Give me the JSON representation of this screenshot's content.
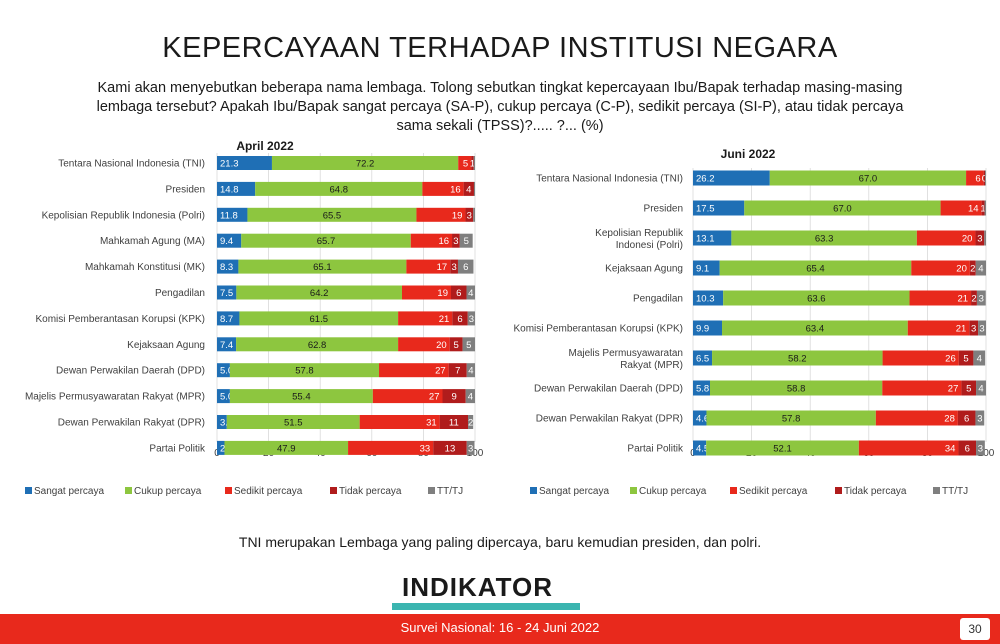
{
  "title": "KEPERCAYAAN TERHADAP INSTITUSI NEGARA",
  "subtitle": "Kami akan menyebutkan beberapa nama lembaga. Tolong sebutkan tingkat kepercayaan Ibu/Bapak terhadap masing-masing lembaga tersebut? Apakah Ibu/Bapak sangat percaya (SA-P), cukup percaya (C-P), sedikit percaya (SI-P), atau tidak percaya sama sekali (TPSS)?..... ?... (%)",
  "conclusion": "TNI merupakan Lembaga yang paling dipercaya, baru kemudian presiden, dan polri.",
  "logo": "INDIKATOR",
  "footer": {
    "text": "Survei Nasional: 16 - 24 Juni 2022",
    "page": "30"
  },
  "colors": [
    "#1f6fb5",
    "#8dc63f",
    "#e8291c",
    "#b01c1c",
    "#7f7f7f"
  ],
  "chart_data": [
    {
      "type": "bar",
      "stacked": true,
      "orientation": "horizontal",
      "title": "April 2022",
      "xlim": [
        0,
        100
      ],
      "xticks": [
        0,
        20,
        40,
        60,
        80,
        100
      ],
      "legend_position": "bottom",
      "categories": [
        "Tentara Nasional Indonesia (TNI)",
        "Presiden",
        "Kepolisian Republik Indonesia (Polri)",
        "Mahkamah Agung (MA)",
        "Mahkamah Konstitusi (MK)",
        "Pengadilan",
        "Komisi Pemberantasan Korupsi (KPK)",
        "Kejaksaan Agung",
        "Dewan Perwakilan Daerah (DPD)",
        "Majelis Permusyawaratan Rakyat (MPR)",
        "Dewan Perwakilan Rakyat (DPR)",
        "Partai Politik"
      ],
      "series": [
        {
          "name": "Sangat percaya",
          "values": [
            21.3,
            14.8,
            11.8,
            9.4,
            8.3,
            7.5,
            8.7,
            7.4,
            5.0,
            5.0,
            3.8,
            2.9
          ]
        },
        {
          "name": "Cukup percaya",
          "values": [
            72.2,
            64.8,
            65.5,
            65.7,
            65.1,
            64.2,
            61.5,
            62.8,
            57.8,
            55.4,
            51.5,
            47.9
          ]
        },
        {
          "name": "Sedikit percaya",
          "values": [
            5,
            16,
            19,
            16,
            17,
            19,
            21,
            20,
            27,
            27,
            31,
            33
          ]
        },
        {
          "name": "Tidak percaya",
          "values": [
            1,
            4,
            3,
            3,
            3,
            6,
            6,
            5,
            7,
            9,
            11,
            13
          ]
        },
        {
          "name": "TT/TJ",
          "values": [
            0.5,
            0.4,
            0.7,
            5,
            6,
            4,
            3,
            5,
            4,
            4,
            2,
            3
          ]
        }
      ],
      "labels": [
        [
          "21.3",
          "72.2",
          "5",
          "1",
          ""
        ],
        [
          "14.8",
          "64.8",
          "16",
          "4",
          ""
        ],
        [
          "11.8",
          "65.5",
          "19",
          "3",
          ""
        ],
        [
          "9.4",
          "65.7",
          "16",
          "3",
          "5"
        ],
        [
          "8.3",
          "65.1",
          "17",
          "3",
          "6"
        ],
        [
          "7.5",
          "64.2",
          "19",
          "6",
          "4"
        ],
        [
          "8.7",
          "61.5",
          "21",
          "6",
          "3"
        ],
        [
          "7.4",
          "62.8",
          "20",
          "5",
          "5"
        ],
        [
          "5.0",
          "57.8",
          "27",
          "7",
          "4"
        ],
        [
          "5.0",
          "55.4",
          "27",
          "9",
          "4"
        ],
        [
          "3.8",
          "51.5",
          "31",
          "11",
          "2"
        ],
        [
          "2.9",
          "47.9",
          "33",
          "13",
          "3"
        ]
      ]
    },
    {
      "type": "bar",
      "stacked": true,
      "orientation": "horizontal",
      "title": "Juni 2022",
      "xlim": [
        0,
        100
      ],
      "xticks": [
        0,
        20,
        40,
        60,
        80,
        100
      ],
      "legend_position": "bottom",
      "categories": [
        "Tentara Nasional Indonesia (TNI)",
        "Presiden",
        "Kepolisian Republik Indonesi (Polri)",
        "Kejaksaan Agung",
        "Pengadilan",
        "Komisi Pemberantasan Korupsi (KPK)",
        "Majelis Permusyawaratan Rakyat (MPR)",
        "Dewan Perwakilan Daerah (DPD)",
        "Dewan Perwakilan Rakyat (DPR)",
        "Partai Politik"
      ],
      "series": [
        {
          "name": "Sangat percaya",
          "values": [
            26.2,
            17.5,
            13.1,
            9.1,
            10.3,
            9.9,
            6.5,
            5.8,
            4.6,
            4.5
          ]
        },
        {
          "name": "Cukup percaya",
          "values": [
            67.0,
            67.0,
            63.3,
            65.4,
            63.6,
            63.4,
            58.2,
            58.8,
            57.8,
            52.1
          ]
        },
        {
          "name": "Sedikit percaya",
          "values": [
            6,
            14,
            20,
            20,
            21,
            21,
            26,
            27,
            28,
            34
          ]
        },
        {
          "name": "Tidak percaya",
          "values": [
            0.5,
            1,
            3,
            2,
            2,
            3,
            5,
            5,
            6,
            6
          ]
        },
        {
          "name": "TT/TJ",
          "values": [
            0.3,
            0.5,
            0.6,
            4,
            3,
            3,
            4,
            4,
            3,
            3
          ]
        }
      ],
      "labels": [
        [
          "26.2",
          "67.0",
          "6",
          "0",
          ""
        ],
        [
          "17.5",
          "67.0",
          "14",
          "1",
          ""
        ],
        [
          "13.1",
          "63.3",
          "20",
          "3",
          ""
        ],
        [
          "9.1",
          "65.4",
          "20",
          "2",
          "4"
        ],
        [
          "10.3",
          "63.6",
          "21",
          "2",
          "3"
        ],
        [
          "9.9",
          "63.4",
          "21",
          "3",
          "3"
        ],
        [
          "6.5",
          "58.2",
          "26",
          "5",
          "4"
        ],
        [
          "5.8",
          "58.8",
          "27",
          "5",
          "4"
        ],
        [
          "4.6",
          "57.8",
          "28",
          "6",
          "3"
        ],
        [
          "4.5",
          "52.1",
          "34",
          "6",
          "3"
        ]
      ]
    }
  ]
}
